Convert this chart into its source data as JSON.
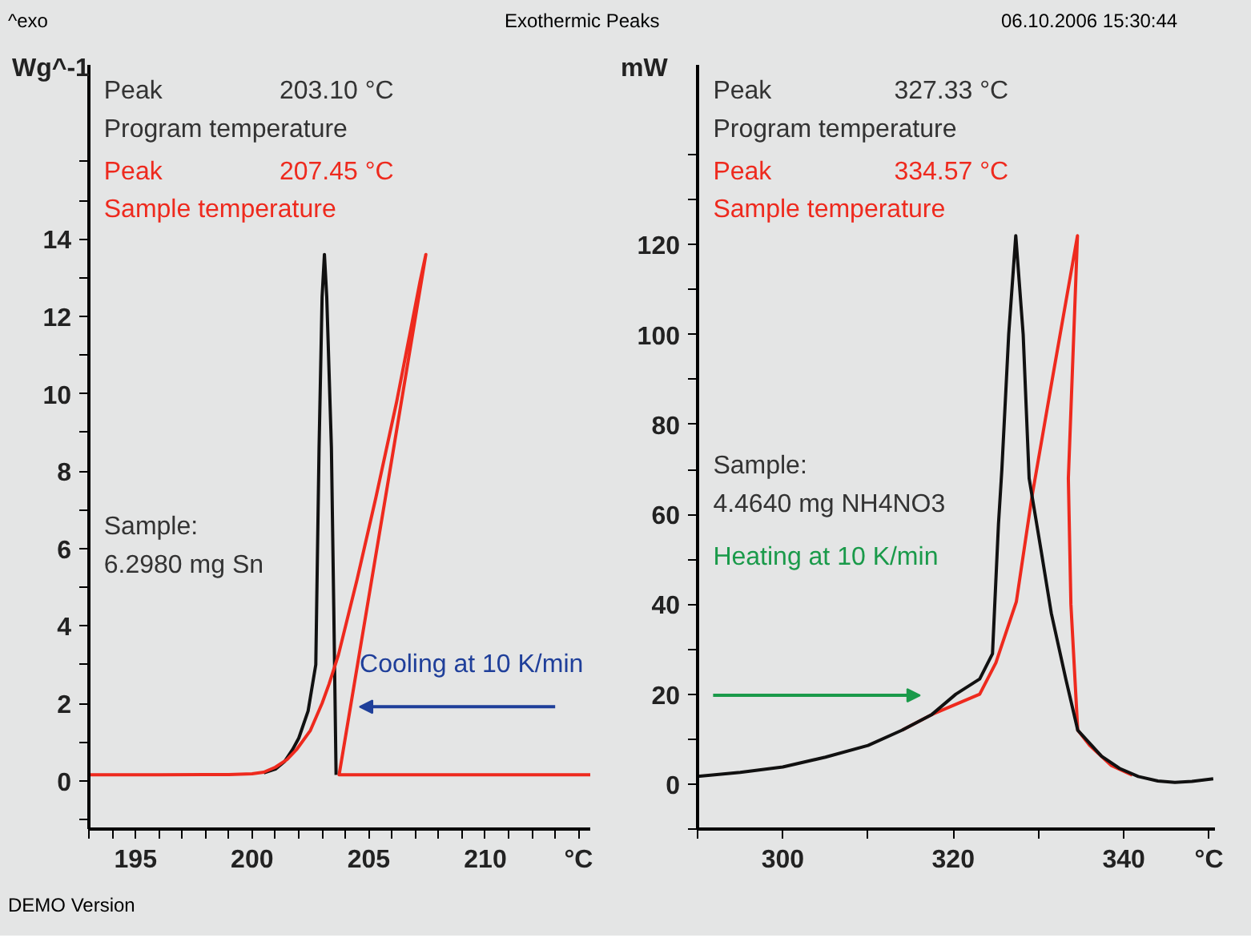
{
  "chart_data": [
    {
      "type": "line",
      "title": "Exothermic Peaks",
      "ylabel": "Wg^-1",
      "xlim": [
        193,
        214.5
      ],
      "ylim": [
        -1.25,
        18.5
      ],
      "xticks": [
        {
          "value": 193,
          "label": null
        },
        {
          "value": 194,
          "label": null
        },
        195,
        {
          "value": 196,
          "label": null
        },
        {
          "value": 197,
          "label": null
        },
        {
          "value": 198,
          "label": null
        },
        {
          "value": 199,
          "label": null
        },
        200,
        {
          "value": 201,
          "label": null
        },
        {
          "value": 202,
          "label": null
        },
        {
          "value": 203,
          "label": null
        },
        {
          "value": 204,
          "label": null
        },
        205,
        {
          "value": 206,
          "label": null
        },
        {
          "value": 207,
          "label": null
        },
        {
          "value": 208,
          "label": null
        },
        {
          "value": 209,
          "label": null
        },
        210,
        {
          "value": 211,
          "label": null
        },
        {
          "value": 212,
          "label": null
        },
        {
          "value": 213,
          "label": null
        },
        {
          "value": 214,
          "label": "°C"
        }
      ],
      "yticks": [
        {
          "value": -1,
          "label": null
        },
        0,
        {
          "value": 1,
          "label": null
        },
        2,
        {
          "value": 3,
          "label": null
        },
        4,
        {
          "value": 5,
          "label": null
        },
        6,
        {
          "value": 7,
          "label": null
        },
        8,
        {
          "value": 9,
          "label": null
        },
        10,
        {
          "value": 11,
          "label": null
        },
        12,
        {
          "value": 13,
          "label": null
        },
        14,
        {
          "value": 15,
          "label": null
        },
        {
          "value": 16,
          "label": null
        }
      ],
      "series": [
        {
          "color": "#111111",
          "x": [
            200.5,
            201.0,
            201.4,
            201.73,
            202.0,
            202.4,
            202.73,
            202.87,
            203.0,
            203.1,
            203.2,
            203.4,
            203.5,
            203.6
          ],
          "values": [
            0.2,
            0.3,
            0.5,
            0.8,
            1.1,
            1.8,
            3.0,
            8.6,
            12.5,
            13.6,
            12.5,
            8.6,
            4.5,
            0.15
          ]
        },
        {
          "color": "#ee2a1e",
          "x": [
            193,
            196,
            199,
            200,
            200.5,
            201.0,
            201.5,
            201.9,
            202.5,
            203.0,
            203.3,
            203.7,
            204.5,
            205.3,
            206.2,
            207.2,
            207.45,
            205.85,
            203.73,
            206,
            210,
            214.5
          ],
          "values": [
            0.15,
            0.15,
            0.16,
            0.18,
            0.22,
            0.35,
            0.55,
            0.8,
            1.3,
            2.0,
            2.5,
            3.25,
            5.2,
            7.3,
            9.8,
            12.9,
            13.6,
            7.8,
            0.15,
            0.15,
            0.15,
            0.15
          ]
        }
      ],
      "annotations": [
        "^exo",
        "06.10.2006 15:30:44",
        "DEMO Version",
        "Peak",
        "203.10 °C",
        "Program temperature",
        "Peak",
        "207.45 °C",
        "Sample temperature",
        "Sample:",
        "6.2980 mg Sn",
        "Cooling at 10 K/min"
      ]
    },
    {
      "type": "line",
      "ylabel": "mW",
      "xlim": [
        290,
        350.7
      ],
      "ylim": [
        -10,
        160
      ],
      "xticks": [
        {
          "value": 290,
          "label": null
        },
        300,
        {
          "value": 310,
          "label": null
        },
        320,
        {
          "value": 330,
          "label": null
        },
        340,
        {
          "value": 350,
          "label": "°C"
        }
      ],
      "yticks": [
        {
          "value": -10,
          "label": null
        },
        0,
        {
          "value": 10,
          "label": null
        },
        20,
        {
          "value": 30,
          "label": null
        },
        40,
        {
          "value": 50,
          "label": null
        },
        60,
        {
          "value": 70,
          "label": null
        },
        80,
        {
          "value": 90,
          "label": null
        },
        100,
        {
          "value": 110,
          "label": null
        },
        120,
        {
          "value": 130,
          "label": null
        },
        {
          "value": 140,
          "label": null
        }
      ],
      "series": [
        {
          "color": "#ee2a1e",
          "x": [
            314,
            317.5,
            320,
            323.1,
            325,
            327.4,
            329.2,
            329.6,
            331.7,
            334.57,
            333.5,
            333.8,
            334.6,
            336,
            338.5,
            341
          ],
          "values": [
            12,
            15.5,
            17.5,
            20,
            27,
            40.6,
            63.6,
            68,
            91,
            122,
            68,
            40,
            12,
            8.6,
            4.2,
            2
          ]
        },
        {
          "color": "#111111",
          "x": [
            290,
            295,
            300,
            305,
            310,
            314,
            317.5,
            320.3,
            323.1,
            324.6,
            325.3,
            325.7,
            326.5,
            327.33,
            328.2,
            328.9,
            330.3,
            331.5,
            333.2,
            334.6,
            337.4,
            339.5,
            341.7,
            344,
            346,
            348,
            350.5
          ],
          "values": [
            1.7,
            2.6,
            3.8,
            6.0,
            8.6,
            12,
            15.5,
            20,
            23.4,
            29,
            57.8,
            70,
            100,
            122,
            100,
            68,
            52,
            38,
            23.4,
            12,
            6.2,
            3.5,
            1.7,
            0.7,
            0.4,
            0.6,
            1.2
          ]
        }
      ],
      "annotations": [
        "Peak",
        "327.33 °C",
        "Program temperature",
        "Peak",
        "334.57 °C",
        "Sample temperature",
        "Sample:",
        "4.4640 mg NH4NO3",
        "Heating at 10 K/min"
      ]
    }
  ]
}
